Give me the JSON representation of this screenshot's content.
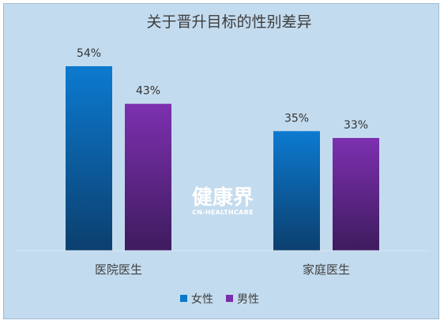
{
  "chart_data": {
    "type": "bar",
    "title": "关于晋升目标的性别差异",
    "categories": [
      "医院医生",
      "家庭医生"
    ],
    "series": [
      {
        "name": "女性",
        "values": [
          54,
          35
        ],
        "labels": [
          "54%",
          "35%"
        ],
        "color": "#0c78c8"
      },
      {
        "name": "男性",
        "values": [
          43,
          33
        ],
        "labels": [
          "43%",
          "33%"
        ],
        "color": "#7a2eaa"
      }
    ],
    "ylim": [
      0,
      60
    ],
    "grid": false,
    "legend": "bottom"
  },
  "watermark": {
    "text": "健康界",
    "subtext": "CN-HEALTHCARE"
  }
}
